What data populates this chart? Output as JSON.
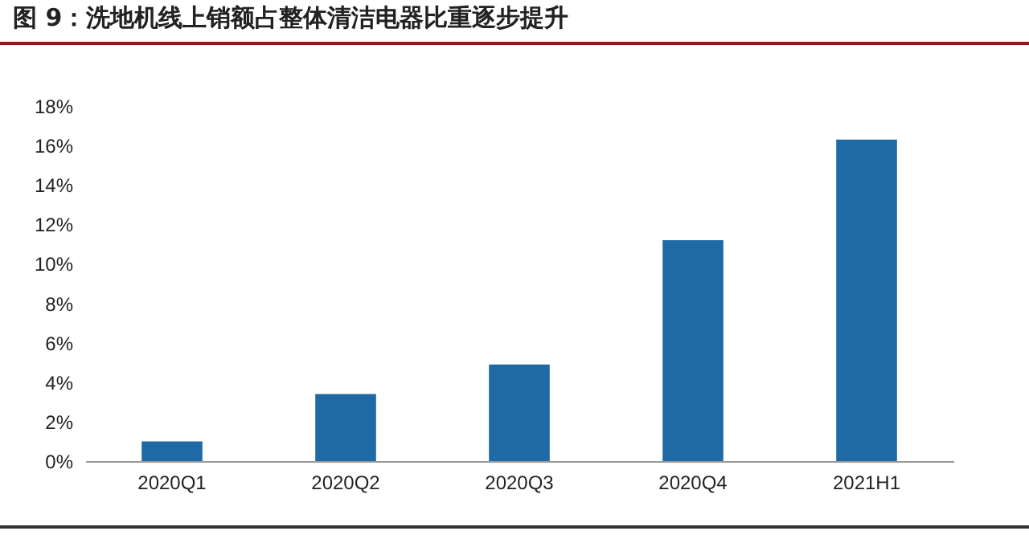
{
  "chart_data": {
    "type": "bar",
    "title": "图 9：洗地机线上销额占整体清洁电器比重逐步提升",
    "categories": [
      "2020Q1",
      "2020Q2",
      "2020Q3",
      "2020Q4",
      "2021H1"
    ],
    "values": [
      1.0,
      3.4,
      4.9,
      11.2,
      16.3
    ],
    "color": "#1f6aa5",
    "ylim": [
      0,
      18
    ],
    "yticks": [
      {
        "value": 0,
        "label": "0%"
      },
      {
        "value": 2,
        "label": "2%"
      },
      {
        "value": 4,
        "label": "4%"
      },
      {
        "value": 6,
        "label": "6%"
      },
      {
        "value": 8,
        "label": "8%"
      },
      {
        "value": 10,
        "label": "10%"
      },
      {
        "value": 12,
        "label": "12%"
      },
      {
        "value": 14,
        "label": "14%"
      },
      {
        "value": 16,
        "label": "16%"
      },
      {
        "value": 18,
        "label": "18%"
      }
    ],
    "grid": false
  }
}
